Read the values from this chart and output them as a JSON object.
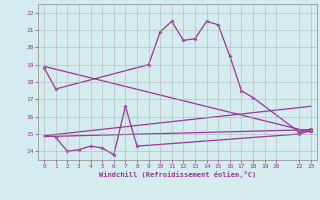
{
  "xlabel": "Windchill (Refroidissement éolien,°C)",
  "background_color": "#d4ecee",
  "grid_color": "#aaaaaa",
  "line_color": "#993399",
  "xlim": [
    -0.5,
    23.5
  ],
  "ylim": [
    13.5,
    22.5
  ],
  "xticks": [
    0,
    1,
    2,
    3,
    4,
    5,
    6,
    7,
    8,
    9,
    10,
    11,
    12,
    13,
    14,
    15,
    16,
    17,
    18,
    19,
    20,
    22,
    23
  ],
  "yticks": [
    14,
    15,
    16,
    17,
    18,
    19,
    20,
    21,
    22
  ],
  "hours": [
    0,
    1,
    2,
    3,
    4,
    5,
    6,
    7,
    8,
    9,
    10,
    11,
    12,
    13,
    14,
    15,
    16,
    17,
    18,
    19,
    20,
    22,
    23
  ],
  "temp": [
    18.8,
    17.6,
    null,
    null,
    null,
    null,
    null,
    null,
    null,
    19.0,
    20.9,
    21.5,
    20.4,
    20.5,
    21.5,
    21.3,
    19.5,
    17.5,
    17.1,
    null,
    null,
    15.1,
    15.3
  ],
  "windchill": [
    null,
    14.8,
    14.0,
    14.1,
    14.3,
    14.2,
    13.8,
    16.6,
    14.3,
    null,
    null,
    null,
    null,
    null,
    null,
    null,
    null,
    null,
    null,
    null,
    null,
    15.0,
    15.2
  ],
  "straight_lines": [
    {
      "x0": 0,
      "y0": 18.9,
      "x1": 23,
      "y1": 15.1
    },
    {
      "x0": 0,
      "y0": 14.9,
      "x1": 23,
      "y1": 16.6
    },
    {
      "x0": 0,
      "y0": 14.85,
      "x1": 23,
      "y1": 15.25
    }
  ]
}
